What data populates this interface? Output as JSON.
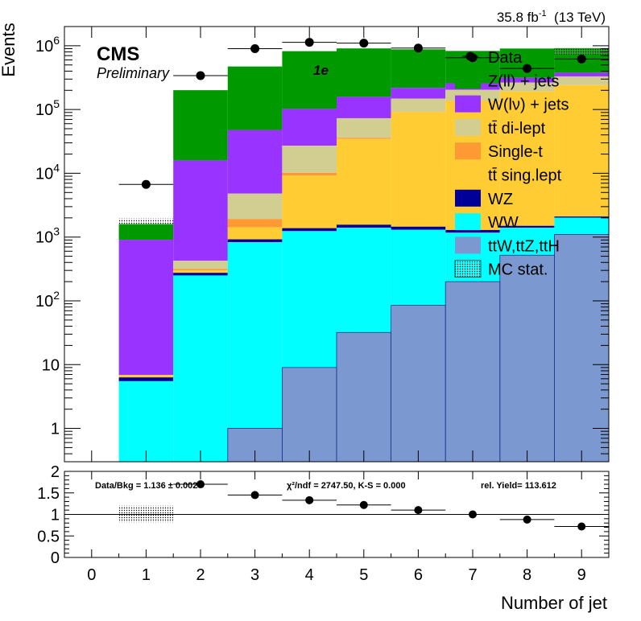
{
  "header": {
    "lumi_value": "35.8 fb",
    "lumi_exp": "-1",
    "energy": "(13 TeV)",
    "experiment": "CMS",
    "status": "Preliminary",
    "channel": "1e"
  },
  "chart_data": [
    {
      "type": "bar",
      "stacked": true,
      "log_y": true,
      "ylabel": "Events",
      "ylim": [
        0.3,
        2000000
      ],
      "y_ticks": [
        {
          "value": 1,
          "label": "1"
        },
        {
          "value": 10,
          "label": "10"
        },
        {
          "value": 100,
          "label": "10",
          "exp": "2"
        },
        {
          "value": 1000,
          "label": "10",
          "exp": "3"
        },
        {
          "value": 10000,
          "label": "10",
          "exp": "4"
        },
        {
          "value": 100000,
          "label": "10",
          "exp": "5"
        },
        {
          "value": 1000000,
          "label": "10",
          "exp": "6"
        }
      ],
      "categories": [
        0,
        1,
        2,
        3,
        4,
        5,
        6,
        7,
        8,
        9
      ],
      "series_stack_order": [
        "ttV",
        "WW",
        "WZ",
        "ttSemi",
        "SingleT",
        "ttDi",
        "Wjets",
        "Zjets"
      ],
      "series": [
        {
          "key": "ttV",
          "color": "#7b99d0",
          "values": [
            0,
            0,
            0,
            1,
            9,
            32,
            85,
            200,
            520,
            1100
          ]
        },
        {
          "key": "WW",
          "color": "#00ffff",
          "values": [
            0,
            5.5,
            250,
            830,
            1230,
            1370,
            1220,
            970,
            880,
            920
          ]
        },
        {
          "key": "WZ",
          "color": "#000099",
          "values": [
            0,
            0.8,
            25,
            90,
            140,
            160,
            150,
            120,
            100,
            80
          ]
        },
        {
          "key": "ttSemi",
          "color": "#ffcc33",
          "values": [
            0,
            0.6,
            25,
            500,
            7800,
            33000,
            90000,
            135000,
            190000,
            240000
          ]
        },
        {
          "key": "SingleT",
          "color": "#ff9933",
          "values": [
            0,
            0,
            15,
            500,
            1000,
            1500,
            1200,
            1000,
            800,
            600
          ]
        },
        {
          "key": "ttDi",
          "color": "#d2ce91",
          "values": [
            0,
            0,
            110,
            2900,
            17000,
            37000,
            56000,
            66000,
            72000,
            88000
          ]
        },
        {
          "key": "Wjets",
          "color": "#9933ff",
          "values": [
            0,
            900,
            15500,
            43000,
            75000,
            85000,
            70000,
            55000,
            50000,
            47000
          ]
        },
        {
          "key": "Zjets",
          "color": "#009900",
          "values": [
            0,
            700,
            185000,
            425000,
            720000,
            750000,
            660000,
            570000,
            590000,
            540000
          ]
        }
      ],
      "data_points": [
        {
          "x": 1,
          "y": 6700
        },
        {
          "x": 2,
          "y": 340000
        },
        {
          "x": 3,
          "y": 900000
        },
        {
          "x": 4,
          "y": 1130000
        },
        {
          "x": 5,
          "y": 1100000
        },
        {
          "x": 6,
          "y": 920000
        },
        {
          "x": 7,
          "y": 650000
        },
        {
          "x": 8,
          "y": 440000
        },
        {
          "x": 9,
          "y": 620000
        }
      ],
      "mc_stat_band": [
        {
          "x": 1,
          "low": 1560,
          "high": 1950
        },
        {
          "x": 9,
          "low": 730000,
          "high": 900000
        }
      ],
      "legend": {
        "placement": "top-right",
        "entries": [
          {
            "label": "Data",
            "kind": "marker"
          },
          {
            "label": "Z(ll) + jets",
            "kind": "fill",
            "color": "#009900"
          },
          {
            "label": "W(lν) + jets",
            "kind": "fill",
            "color": "#9933ff"
          },
          {
            "label": "tt̄ di-lept",
            "kind": "fill",
            "color": "#d2ce91"
          },
          {
            "label": "Single-t",
            "kind": "fill",
            "color": "#ff9933"
          },
          {
            "label": "tt̄ sing.lept",
            "kind": "fill",
            "color": "#ffcc33"
          },
          {
            "label": "WZ",
            "kind": "fill",
            "color": "#000099"
          },
          {
            "label": "WW",
            "kind": "fill",
            "color": "#00ffff"
          },
          {
            "label": "ttW,ttZ,ttH",
            "kind": "fill",
            "color": "#7b99d0"
          },
          {
            "label": "MC stat.",
            "kind": "hatch"
          }
        ]
      }
    },
    {
      "type": "scatter",
      "ylim": [
        0,
        2
      ],
      "y_ticks": [
        "0",
        "0.5",
        "1",
        "1.5",
        "2"
      ],
      "x_ticks": [
        "0",
        "1",
        "2",
        "3",
        "4",
        "5",
        "6",
        "7",
        "8",
        "9"
      ],
      "xlim": [
        -0.5,
        9.5
      ],
      "xlabel": "Number of jet",
      "reference_line": 1,
      "points": [
        {
          "x": 2,
          "y": 1.7
        },
        {
          "x": 3,
          "y": 1.45
        },
        {
          "x": 4,
          "y": 1.33
        },
        {
          "x": 5,
          "y": 1.22
        },
        {
          "x": 6,
          "y": 1.1
        },
        {
          "x": 7,
          "y": 1.0
        },
        {
          "x": 8,
          "y": 0.88
        },
        {
          "x": 9,
          "y": 0.72
        }
      ],
      "stat_band": [
        {
          "x": 1,
          "low": 0.82,
          "high": 1.2
        }
      ],
      "annotations": {
        "ratio_text": "Data/Bkg = 1.136 ± 0.002",
        "chi2_text": "χ²/ndf = 2747.50,   K-S = 0.000",
        "yield_text": "rel. Yield= 113.612"
      }
    }
  ]
}
